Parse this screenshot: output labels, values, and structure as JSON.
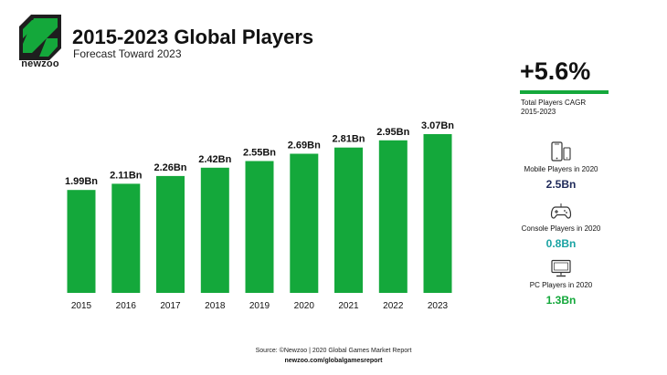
{
  "brand": {
    "name": "newzoo",
    "accent_color": "#14a83b",
    "dark_color": "#1e1e1e"
  },
  "header": {
    "title": "2015-2023 Global Players",
    "subtitle": "Forecast Toward 2023"
  },
  "chart_data": {
    "type": "bar",
    "title": "2015-2023 Global Players",
    "subtitle": "Forecast Toward 2023",
    "categories": [
      "2015",
      "2016",
      "2017",
      "2018",
      "2019",
      "2020",
      "2021",
      "2022",
      "2023"
    ],
    "values": [
      1.99,
      2.11,
      2.26,
      2.42,
      2.55,
      2.69,
      2.81,
      2.95,
      3.07
    ],
    "data_labels": [
      "1.99Bn",
      "2.11Bn",
      "2.26Bn",
      "2.42Bn",
      "2.55Bn",
      "2.69Bn",
      "2.81Bn",
      "2.95Bn",
      "3.07Bn"
    ],
    "xlabel": "",
    "ylabel": "",
    "ylim": [
      0,
      3.07
    ],
    "bar_color": "#14a83b",
    "grid": false
  },
  "sidebar": {
    "cagr_value": "+5.6%",
    "cagr_label_line1": "Total Players CAGR",
    "cagr_label_line2": "2015-2023",
    "stats": [
      {
        "icon": "mobile-phone-icon",
        "label": "Mobile Players in 2020",
        "value": "2.5Bn",
        "color": "#1f2a5a"
      },
      {
        "icon": "gamepad-icon",
        "label": "Console Players in 2020",
        "value": "0.8Bn",
        "color": "#1aa3a3"
      },
      {
        "icon": "monitor-icon",
        "label": "PC Players in 2020",
        "value": "1.3Bn",
        "color": "#14a83b"
      }
    ]
  },
  "footer": {
    "source": "Source: ©Newzoo | 2020 Global Games Market Report",
    "url": "newzoo.com/globalgamesreport"
  }
}
